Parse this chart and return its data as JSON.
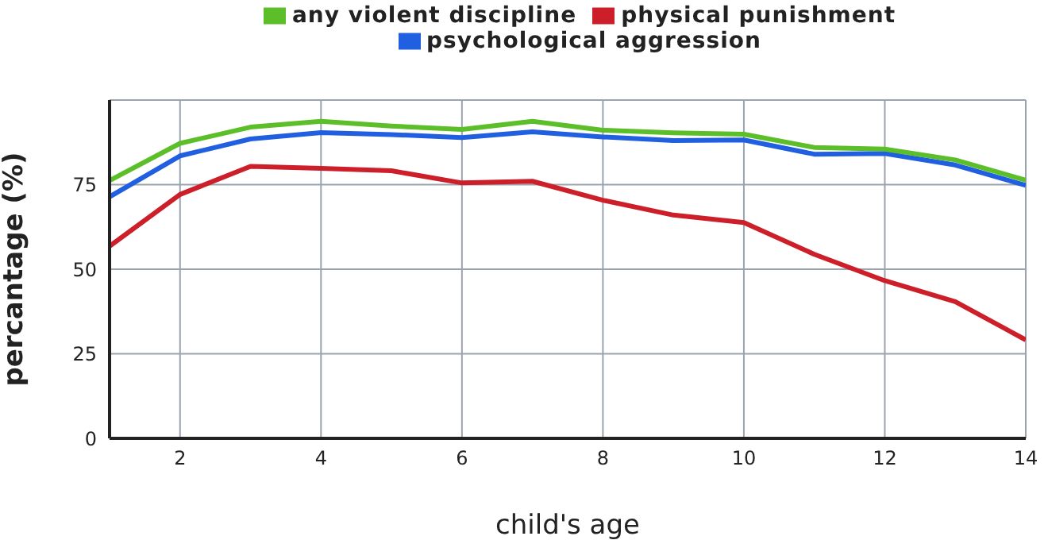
{
  "chart_data": {
    "type": "line",
    "xlabel": "child's age",
    "ylabel": "percantage (%)",
    "x": [
      1,
      2,
      3,
      4,
      5,
      6,
      7,
      8,
      9,
      10,
      11,
      12,
      13,
      14
    ],
    "series": [
      {
        "name": "psychological aggression",
        "color": "#1f5fe0",
        "values": [
          71.4,
          83.5,
          88.5,
          90.4,
          89.8,
          88.9,
          90.6,
          89.1,
          88,
          88.2,
          84,
          84.2,
          80.8,
          74.8
        ]
      },
      {
        "name": "physical punishment",
        "color": "#cc1f2a",
        "values": [
          56.8,
          72.1,
          80.4,
          79.8,
          79.1,
          75.5,
          76,
          70.4,
          66,
          63.8,
          54.4,
          46.6,
          40.4,
          29.1
        ]
      },
      {
        "name": "any violent discipline",
        "color": "#5cbf2a",
        "values": [
          76.2,
          87.2,
          92,
          93.7,
          92.3,
          91.3,
          93.7,
          91.1,
          90.3,
          89.9,
          86,
          85.5,
          82.3,
          76.3
        ]
      }
    ],
    "xlim": [
      1,
      14
    ],
    "xticks": [
      2,
      4,
      6,
      8,
      10,
      12,
      14
    ],
    "ylim": [
      0,
      100
    ],
    "yticks": [
      0,
      25,
      50,
      75,
      {
        "value": 100,
        "label": null
      }
    ],
    "grid": true,
    "legend": "top",
    "marker": "none",
    "line_style": "solid"
  }
}
